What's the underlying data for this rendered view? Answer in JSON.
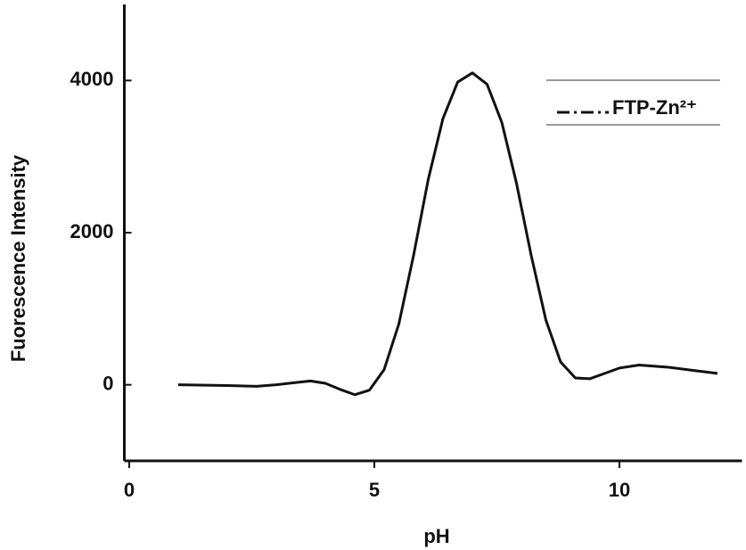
{
  "chart_data": {
    "type": "line",
    "x_label": "pH",
    "y_label": "Fuorescence Intensity",
    "x": [
      1,
      2,
      2.6,
      3,
      3.4,
      3.7,
      4,
      4.3,
      4.6,
      4.9,
      5.2,
      5.5,
      5.8,
      6.1,
      6.4,
      6.7,
      7,
      7.3,
      7.6,
      7.9,
      8.2,
      8.5,
      8.8,
      9.1,
      9.4,
      9.7,
      10,
      10.4,
      11,
      11.5,
      12
    ],
    "series": [
      {
        "name": "FTP-Zn²⁺",
        "color": "#111111",
        "values": [
          0,
          -10,
          -20,
          0,
          30,
          50,
          20,
          -60,
          -130,
          -70,
          200,
          800,
          1700,
          2700,
          3500,
          3980,
          4100,
          3950,
          3450,
          2650,
          1700,
          850,
          300,
          90,
          80,
          150,
          220,
          260,
          230,
          190,
          150
        ]
      }
    ],
    "xlim": [
      -0.1,
      12.5
    ],
    "ylim": [
      -1000,
      5000
    ],
    "xticks": [
      0,
      5,
      10
    ],
    "yticks": [
      0,
      2000,
      4000
    ],
    "legend": "upper right"
  }
}
